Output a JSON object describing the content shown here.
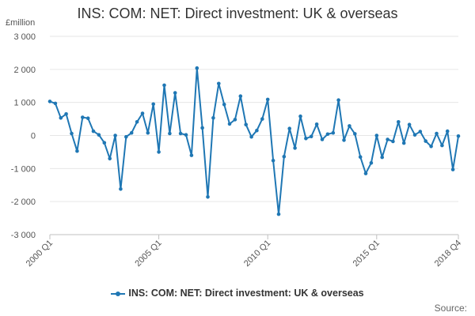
{
  "chart_data": {
    "type": "line",
    "title": "INS: COM: NET: Direct investment: UK & overseas",
    "ylabel": "£million",
    "xlabel": "",
    "ylim": [
      -3000,
      3000
    ],
    "yticks": [
      -3000,
      -2000,
      -1000,
      0,
      1000,
      2000,
      3000
    ],
    "ytick_labels": [
      "-3 000",
      "-2 000",
      "-1 000",
      "0",
      "1 000",
      "2 000",
      "3 000"
    ],
    "xtick_labels": [
      "2000 Q1",
      "2005 Q1",
      "2010 Q1",
      "2015 Q1",
      "2018 Q4"
    ],
    "xtick_indices": [
      0,
      20,
      40,
      60,
      75
    ],
    "grid": true,
    "legend_position": "bottom",
    "categories": [
      "2000 Q1",
      "2000 Q2",
      "2000 Q3",
      "2000 Q4",
      "2001 Q1",
      "2001 Q2",
      "2001 Q3",
      "2001 Q4",
      "2002 Q1",
      "2002 Q2",
      "2002 Q3",
      "2002 Q4",
      "2003 Q1",
      "2003 Q2",
      "2003 Q3",
      "2003 Q4",
      "2004 Q1",
      "2004 Q2",
      "2004 Q3",
      "2004 Q4",
      "2005 Q1",
      "2005 Q2",
      "2005 Q3",
      "2005 Q4",
      "2006 Q1",
      "2006 Q2",
      "2006 Q3",
      "2006 Q4",
      "2007 Q1",
      "2007 Q2",
      "2007 Q3",
      "2007 Q4",
      "2008 Q1",
      "2008 Q2",
      "2008 Q3",
      "2008 Q4",
      "2009 Q1",
      "2009 Q2",
      "2009 Q3",
      "2009 Q4",
      "2010 Q1",
      "2010 Q2",
      "2010 Q3",
      "2010 Q4",
      "2011 Q1",
      "2011 Q2",
      "2011 Q3",
      "2011 Q4",
      "2012 Q1",
      "2012 Q2",
      "2012 Q3",
      "2012 Q4",
      "2013 Q1",
      "2013 Q2",
      "2013 Q3",
      "2013 Q4",
      "2014 Q1",
      "2014 Q2",
      "2014 Q3",
      "2014 Q4",
      "2015 Q1",
      "2015 Q2",
      "2015 Q3",
      "2015 Q4",
      "2016 Q1",
      "2016 Q2",
      "2016 Q3",
      "2016 Q4",
      "2017 Q1",
      "2017 Q2",
      "2017 Q3",
      "2017 Q4",
      "2018 Q1",
      "2018 Q2",
      "2018 Q3",
      "2018 Q4"
    ],
    "series": [
      {
        "name": "INS: COM: NET: Direct investment: UK & overseas",
        "color": "#1f77b4",
        "values": [
          1030,
          970,
          530,
          650,
          60,
          -470,
          550,
          520,
          130,
          20,
          -220,
          -700,
          0,
          -1620,
          -40,
          80,
          410,
          670,
          80,
          950,
          -500,
          1520,
          60,
          1290,
          60,
          20,
          -600,
          2040,
          230,
          -1860,
          530,
          1570,
          940,
          350,
          480,
          1190,
          330,
          -40,
          150,
          500,
          1090,
          -760,
          -2380,
          -640,
          210,
          -380,
          580,
          -90,
          -30,
          340,
          -120,
          40,
          80,
          1070,
          -140,
          290,
          50,
          -650,
          -1150,
          -830,
          0,
          -660,
          -120,
          -180,
          410,
          -230,
          330,
          20,
          120,
          -170,
          -330,
          60,
          -300,
          130,
          -1030,
          -20
        ]
      }
    ]
  },
  "legend": {
    "label": "INS: COM: NET: Direct investment: UK & overseas"
  },
  "footer": {
    "source_label": "Source:"
  }
}
